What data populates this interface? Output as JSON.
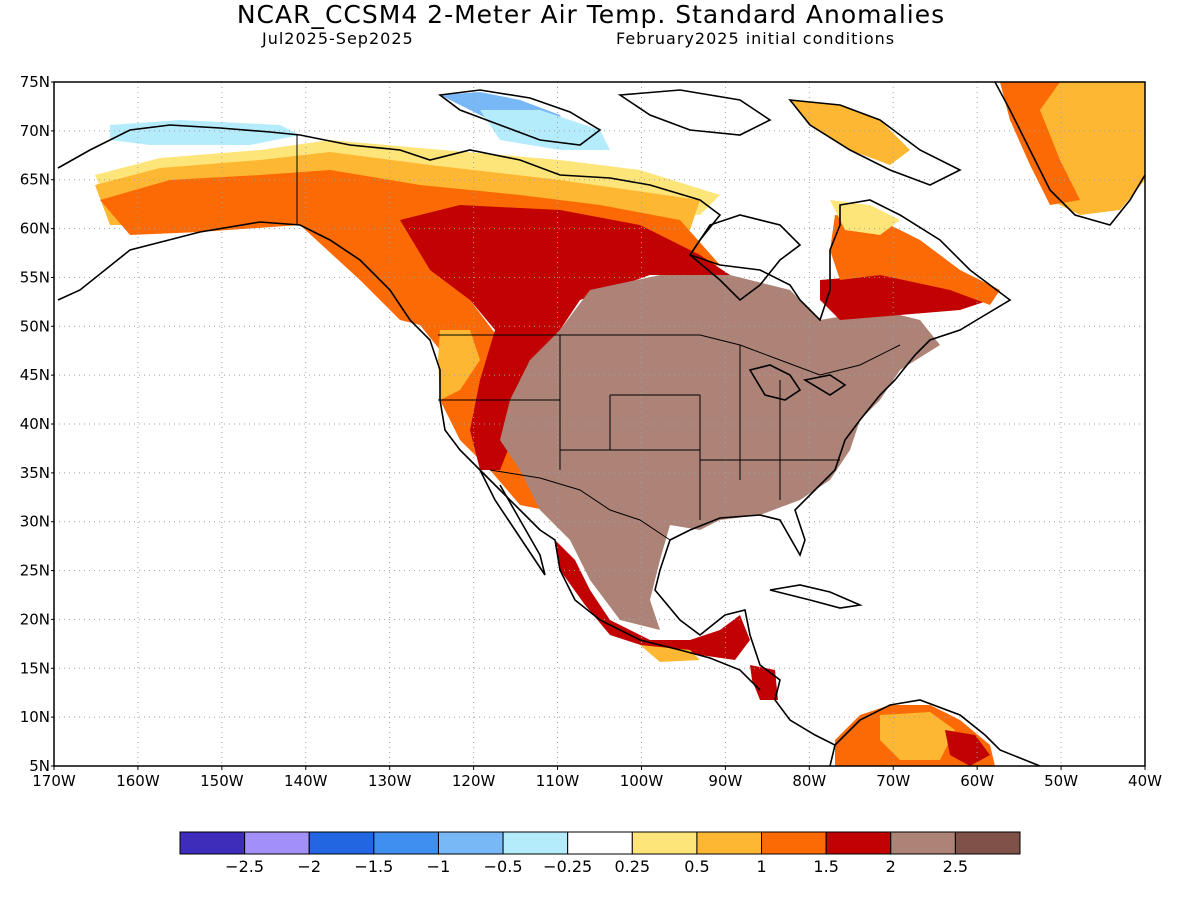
{
  "title": "NCAR_CCSM4 2-Meter Air Temp. Standard Anomalies",
  "subtitle_left": "Jul2025-Sep2025",
  "subtitle_right": "February2025 initial conditions",
  "map": {
    "projection": "equirectangular",
    "lon_range": [
      -170,
      -40
    ],
    "lat_range": [
      5,
      75
    ],
    "grid": "dotted",
    "lat_labels": [
      "75N",
      "70N",
      "65N",
      "60N",
      "55N",
      "50N",
      "45N",
      "40N",
      "35N",
      "30N",
      "25N",
      "20N",
      "15N",
      "10N",
      "5N"
    ],
    "lon_labels": [
      "170W",
      "160W",
      "150W",
      "140W",
      "130W",
      "120W",
      "110W",
      "100W",
      "90W",
      "80W",
      "70W",
      "60W",
      "50W",
      "40W"
    ]
  },
  "colorbar": {
    "colors": [
      "#3e2dbb",
      "#a290f8",
      "#2366e2",
      "#3f8ff0",
      "#79b8f7",
      "#b5ecfb",
      "#ffffff",
      "#fde57a",
      "#fdb732",
      "#fb6a04",
      "#c20202",
      "#ad8378",
      "#7f5148"
    ],
    "labels": [
      "-2.5",
      "-2",
      "-1.5",
      "-1",
      "-0.5",
      "-0.25",
      "0.25",
      "0.5",
      "1",
      "1.5",
      "2",
      "2.5"
    ]
  },
  "colors": {
    "land_outline": "#000000",
    "grid_line": "#a0a0a0"
  }
}
